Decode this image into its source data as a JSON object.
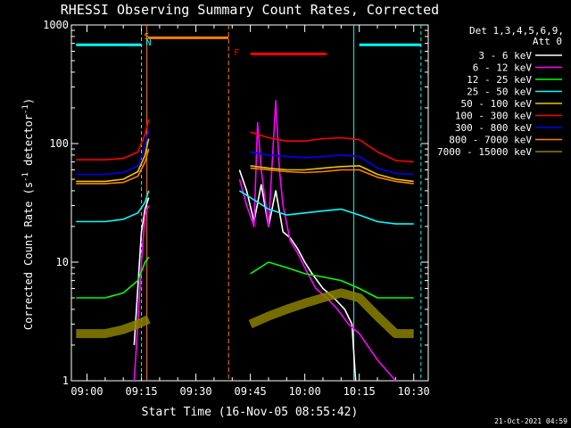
{
  "title": "RHESSI Observing Summary Count Rates, Corrected",
  "ylabel_main": "Corrected Count Rate (s",
  "ylabel_sup1": "-1",
  "ylabel_mid": " detector",
  "ylabel_sup2": "-1",
  "ylabel_end": ")",
  "xlabel": "Start Time (16-Nov-05 08:55:42)",
  "timestamp": "21-Oct-2021 04:59",
  "legend": {
    "header1": "Det 1,3,4,5,6,9,",
    "header2": "Att 0",
    "items": [
      {
        "label": "3 - 6 keV",
        "color": "#ffffff"
      },
      {
        "label": "6 - 12 keV",
        "color": "#ff00ff"
      },
      {
        "label": "12 - 25 keV",
        "color": "#00ff00"
      },
      {
        "label": "25 - 50 keV",
        "color": "#00ffff"
      },
      {
        "label": "50 - 100 keV",
        "color": "#e8c800"
      },
      {
        "label": "100 - 300 keV",
        "color": "#ff0000"
      },
      {
        "label": "300 - 800 keV",
        "color": "#0000ff"
      },
      {
        "label": "800 - 7000 keV",
        "color": "#ff8000"
      },
      {
        "label": "7000 - 15000 keV",
        "color": "#8b8000"
      }
    ]
  },
  "markers": {
    "s": "S",
    "n": "N",
    "f": "F"
  },
  "chart_data": {
    "type": "line",
    "title": "RHESSI Observing Summary Count Rates, Corrected",
    "xlabel": "Start Time (16-Nov-05 08:55:42)",
    "ylabel": "Corrected Count Rate (s-1 detector-1)",
    "yscale": "log",
    "ylim": [
      1,
      1000
    ],
    "xlim_minutes": [
      "08:55:42",
      "10:34"
    ],
    "x_ticks": [
      "09:00",
      "09:15",
      "09:30",
      "09:45",
      "10:00",
      "10:15",
      "10:30"
    ],
    "y_ticks": [
      "1",
      "10",
      "100",
      "1000"
    ],
    "data_gap": [
      "09:17",
      "09:40"
    ],
    "series": [
      {
        "name": "3 - 6 keV",
        "x": [
          "09:13",
          "09:15",
          "09:16",
          "09:17",
          "09:40",
          "09:42",
          "09:44",
          "09:46",
          "09:48",
          "09:50",
          "09:52",
          "09:54",
          "09:56",
          "09:58",
          "10:00",
          "10:02",
          "10:05",
          "10:08",
          "10:11",
          "10:13",
          "10:14"
        ],
        "values": [
          2,
          18,
          28,
          35,
          null,
          60,
          40,
          22,
          45,
          20,
          40,
          18,
          16,
          13,
          10,
          8,
          6,
          5,
          4,
          3,
          1
        ]
      },
      {
        "name": "6 - 12 keV",
        "x": [
          "09:13",
          "09:14",
          "09:15",
          "09:16",
          "09:17",
          "09:40",
          "09:42",
          "09:44",
          "09:46",
          "09:47",
          "09:48",
          "09:50",
          "09:52",
          "09:53",
          "09:54",
          "09:56",
          "09:58",
          "10:00",
          "10:03",
          "10:06",
          "10:09",
          "10:12",
          "10:15",
          "10:20",
          "10:25"
        ],
        "values": [
          1,
          3,
          10,
          25,
          30,
          null,
          50,
          30,
          20,
          150,
          60,
          20,
          230,
          60,
          30,
          15,
          12,
          9,
          6,
          5,
          4,
          3,
          2.5,
          1.5,
          1
        ]
      },
      {
        "name": "12 - 25 keV",
        "x": [
          "08:57",
          "09:05",
          "09:10",
          "09:14",
          "09:16",
          "09:17",
          "09:40",
          "09:45",
          "09:50",
          "09:55",
          "10:00",
          "10:05",
          "10:10",
          "10:15",
          "10:20",
          "10:25",
          "10:30"
        ],
        "values": [
          5,
          5,
          5.5,
          7,
          10,
          11,
          null,
          8,
          10,
          9,
          8,
          7.5,
          7,
          6,
          5,
          5,
          5
        ]
      },
      {
        "name": "25 - 50 keV",
        "x": [
          "08:57",
          "09:05",
          "09:10",
          "09:14",
          "09:16",
          "09:17",
          "09:40",
          "09:42",
          "09:45",
          "09:50",
          "09:55",
          "10:00",
          "10:05",
          "10:10",
          "10:15",
          "10:20",
          "10:25",
          "10:30"
        ],
        "values": [
          22,
          22,
          23,
          26,
          32,
          40,
          null,
          40,
          35,
          28,
          25,
          26,
          27,
          28,
          25,
          22,
          21,
          21
        ]
      },
      {
        "name": "50 - 100 keV",
        "x": [
          "08:57",
          "09:05",
          "09:10",
          "09:14",
          "09:16",
          "09:17",
          "09:40",
          "09:45",
          "09:50",
          "09:55",
          "10:00",
          "10:05",
          "10:10",
          "10:15",
          "10:20",
          "10:25",
          "10:30"
        ],
        "values": [
          48,
          48,
          50,
          58,
          80,
          110,
          null,
          65,
          62,
          60,
          60,
          62,
          64,
          65,
          55,
          50,
          48
        ]
      },
      {
        "name": "100 - 300 keV",
        "x": [
          "08:57",
          "09:05",
          "09:10",
          "09:14",
          "09:16",
          "09:17",
          "09:40",
          "09:45",
          "09:50",
          "09:55",
          "10:00",
          "10:05",
          "10:10",
          "10:15",
          "10:20",
          "10:25",
          "10:30"
        ],
        "values": [
          73,
          73,
          75,
          85,
          120,
          160,
          null,
          125,
          112,
          105,
          105,
          110,
          112,
          108,
          85,
          72,
          70
        ]
      },
      {
        "name": "300 - 800 keV",
        "x": [
          "08:57",
          "09:05",
          "09:10",
          "09:14",
          "09:16",
          "09:17",
          "09:40",
          "09:45",
          "09:50",
          "09:55",
          "10:00",
          "10:05",
          "10:10",
          "10:15",
          "10:20",
          "10:25",
          "10:30"
        ],
        "values": [
          55,
          55,
          57,
          65,
          95,
          130,
          null,
          85,
          80,
          78,
          76,
          78,
          80,
          78,
          62,
          56,
          55
        ]
      },
      {
        "name": "800 - 7000 keV",
        "x": [
          "08:57",
          "09:05",
          "09:10",
          "09:14",
          "09:16",
          "09:17",
          "09:40",
          "09:45",
          "09:50",
          "09:55",
          "10:00",
          "10:05",
          "10:10",
          "10:15",
          "10:20",
          "10:25",
          "10:30"
        ],
        "values": [
          46,
          46,
          47,
          53,
          70,
          90,
          null,
          62,
          60,
          58,
          57,
          58,
          60,
          60,
          52,
          48,
          46
        ]
      },
      {
        "name": "7000 - 15000 keV",
        "x": [
          "08:57",
          "09:05",
          "09:10",
          "09:14",
          "09:16",
          "09:17",
          "09:40",
          "09:45",
          "09:50",
          "09:55",
          "10:00",
          "10:05",
          "10:10",
          "10:15",
          "10:20",
          "10:25",
          "10:30"
        ],
        "values": [
          2.5,
          2.5,
          2.7,
          3.0,
          3.2,
          3.3,
          null,
          3.0,
          3.5,
          4.0,
          4.5,
          5.0,
          5.5,
          5.0,
          3.5,
          2.5,
          2.5
        ]
      }
    ],
    "bars": [
      {
        "name": "SAA",
        "color": "#00ffff",
        "x": [
          [
            "08:57",
            "09:15"
          ],
          [
            "10:15",
            "10:32"
          ]
        ]
      },
      {
        "name": "Night",
        "color": "#ff8000",
        "x": [
          [
            "09:17",
            "09:39"
          ]
        ]
      },
      {
        "name": "Flare",
        "color": "#ff0000",
        "x": [
          [
            "09:45",
            "10:06"
          ]
        ]
      }
    ]
  }
}
